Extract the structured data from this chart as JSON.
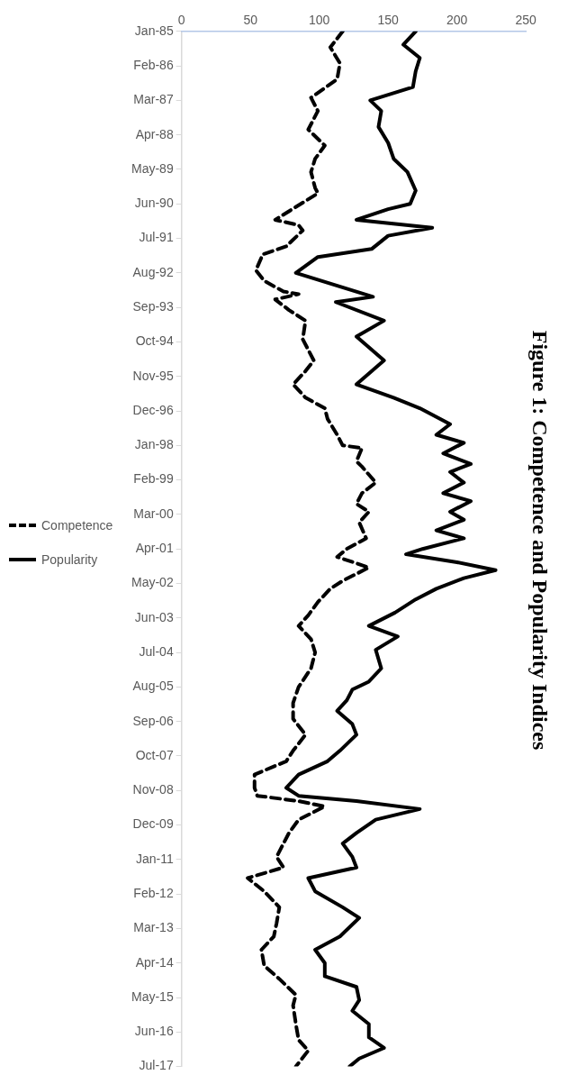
{
  "chart_data": {
    "type": "line",
    "title": "Figure 1: Competence and Popularity Indices",
    "orientation": "horizontal",
    "ylim": [
      "2017-07",
      "1985-01"
    ],
    "yticks": [
      {
        "value": "1985-01",
        "label": "Jan-85"
      },
      {
        "value": "1986-02",
        "label": "Feb-86"
      },
      {
        "value": "1987-03",
        "label": "Mar-87"
      },
      {
        "value": "1988-04",
        "label": "Apr-88"
      },
      {
        "value": "1989-05",
        "label": "May-89"
      },
      {
        "value": "1990-06",
        "label": "Jun-90"
      },
      {
        "value": "1991-07",
        "label": "Jul-91"
      },
      {
        "value": "1992-08",
        "label": "Aug-92"
      },
      {
        "value": "1993-09",
        "label": "Sep-93"
      },
      {
        "value": "1994-10",
        "label": "Oct-94"
      },
      {
        "value": "1995-11",
        "label": "Nov-95"
      },
      {
        "value": "1996-12",
        "label": "Dec-96"
      },
      {
        "value": "1998-01",
        "label": "Jan-98"
      },
      {
        "value": "1999-02",
        "label": "Feb-99"
      },
      {
        "value": "2000-03",
        "label": "Mar-00"
      },
      {
        "value": "2001-04",
        "label": "Apr-01"
      },
      {
        "value": "2002-05",
        "label": "May-02"
      },
      {
        "value": "2003-06",
        "label": "Jun-03"
      },
      {
        "value": "2004-07",
        "label": "Jul-04"
      },
      {
        "value": "2005-08",
        "label": "Aug-05"
      },
      {
        "value": "2006-09",
        "label": "Sep-06"
      },
      {
        "value": "2007-10",
        "label": "Oct-07"
      },
      {
        "value": "2008-11",
        "label": "Nov-08"
      },
      {
        "value": "2009-12",
        "label": "Dec-09"
      },
      {
        "value": "2011-01",
        "label": "Jan-11"
      },
      {
        "value": "2012-02",
        "label": "Feb-12"
      },
      {
        "value": "2013-03",
        "label": "Mar-13"
      },
      {
        "value": "2014-04",
        "label": "Apr-14"
      },
      {
        "value": "2015-05",
        "label": "May-15"
      },
      {
        "value": "2016-06",
        "label": "Jun-16"
      },
      {
        "value": "2017-07",
        "label": "Jul-17"
      }
    ],
    "xlim": [
      0,
      250
    ],
    "xticks": [
      0,
      50,
      100,
      150,
      200,
      250
    ],
    "grid": false,
    "legend": "left",
    "marker": "none",
    "series": [
      {
        "name": "Competence",
        "color": "#000000",
        "line_style": "dashed",
        "x": [
          "1985-01",
          "1985-07",
          "1986-01",
          "1986-07",
          "1987-02",
          "1987-07",
          "1988-02",
          "1988-08",
          "1989-01",
          "1989-06",
          "1989-12",
          "1990-02",
          "1990-12",
          "1991-02",
          "1991-04",
          "1991-10",
          "1992-01",
          "1992-07",
          "1992-11",
          "1993-03",
          "1993-04",
          "1993-06",
          "1993-10",
          "1994-02",
          "1994-09",
          "1995-05",
          "1995-09",
          "1996-02",
          "1996-07",
          "1996-11",
          "1997-03",
          "1997-09",
          "1998-01",
          "1998-02",
          "1998-07",
          "1998-09",
          "1999-03",
          "1999-07",
          "1999-11",
          "2000-02",
          "2000-06",
          "2000-12",
          "2001-04",
          "2001-07",
          "2001-11",
          "2002-04",
          "2002-07",
          "2002-12",
          "2003-05",
          "2003-09",
          "2004-02",
          "2004-07",
          "2005-01",
          "2005-08",
          "2006-02",
          "2006-08",
          "2007-02",
          "2007-08",
          "2007-12",
          "2008-05",
          "2008-10",
          "2009-01",
          "2009-03",
          "2009-05",
          "2009-10",
          "2010-03",
          "2010-07",
          "2010-12",
          "2011-04",
          "2011-08",
          "2012-01",
          "2012-07",
          "2013-01",
          "2013-06",
          "2013-11",
          "2014-05",
          "2014-10",
          "2015-04",
          "2015-08",
          "2016-03",
          "2016-09",
          "2017-01",
          "2017-07"
        ],
        "values": [
          117,
          108,
          115,
          113,
          94,
          99,
          92,
          104,
          97,
          94,
          97,
          99,
          68,
          85,
          88,
          76,
          59,
          54,
          60,
          74,
          85,
          68,
          78,
          90,
          88,
          96,
          90,
          81,
          90,
          104,
          106,
          113,
          117,
          131,
          127,
          131,
          141,
          131,
          127,
          136,
          129,
          134,
          120,
          113,
          136,
          117,
          108,
          99,
          92,
          85,
          94,
          97,
          94,
          85,
          81,
          81,
          90,
          81,
          76,
          53,
          53,
          55,
          85,
          104,
          85,
          78,
          74,
          69,
          74,
          48,
          60,
          71,
          69,
          67,
          58,
          60,
          71,
          83,
          81,
          83,
          85,
          92,
          83
        ]
      },
      {
        "name": "Popularity",
        "color": "#000000",
        "line_style": "solid",
        "x": [
          "1985-01",
          "1985-06",
          "1985-11",
          "1986-04",
          "1986-10",
          "1987-03",
          "1987-07",
          "1988-01",
          "1988-07",
          "1989-01",
          "1989-06",
          "1990-01",
          "1990-06",
          "1990-08",
          "1990-12",
          "1991-03",
          "1991-06",
          "1991-11",
          "1992-02",
          "1992-08",
          "1993-05",
          "1993-07",
          "1994-02",
          "1994-08",
          "1995-05",
          "1996-02",
          "1996-07",
          "1996-11",
          "1997-05",
          "1997-09",
          "1997-12",
          "1998-04",
          "1998-08",
          "1998-11",
          "1999-03",
          "1999-07",
          "1999-10",
          "2000-02",
          "2000-05",
          "2000-09",
          "2000-12",
          "2001-04",
          "2001-06",
          "2001-09",
          "2001-12",
          "2002-03",
          "2002-07",
          "2002-11",
          "2003-04",
          "2003-09",
          "2004-01",
          "2004-06",
          "2005-01",
          "2005-06",
          "2005-09",
          "2006-01",
          "2006-05",
          "2006-10",
          "2007-02",
          "2007-08",
          "2007-12",
          "2008-05",
          "2008-10",
          "2009-01",
          "2009-03",
          "2009-06",
          "2009-10",
          "2010-03",
          "2010-07",
          "2010-12",
          "2011-04",
          "2011-08",
          "2012-01",
          "2012-07",
          "2012-11",
          "2013-06",
          "2013-11",
          "2014-04",
          "2014-09",
          "2015-01",
          "2015-06",
          "2015-10",
          "2016-03",
          "2016-08",
          "2016-12",
          "2017-04",
          "2017-07"
        ],
        "values": [
          170,
          161,
          173,
          170,
          168,
          137,
          145,
          143,
          150,
          154,
          164,
          170,
          166,
          150,
          127,
          182,
          150,
          138,
          99,
          83,
          139,
          112,
          147,
          127,
          147,
          127,
          154,
          173,
          195,
          185,
          205,
          190,
          210,
          195,
          205,
          190,
          210,
          195,
          205,
          185,
          205,
          175,
          163,
          200,
          228,
          205,
          185,
          170,
          155,
          136,
          157,
          141,
          145,
          136,
          124,
          120,
          113,
          124,
          127,
          115,
          106,
          85,
          76,
          85,
          127,
          173,
          141,
          127,
          117,
          124,
          127,
          92,
          97,
          117,
          129,
          115,
          97,
          104,
          104,
          127,
          129,
          124,
          136,
          136,
          147,
          129,
          122
        ]
      }
    ]
  }
}
